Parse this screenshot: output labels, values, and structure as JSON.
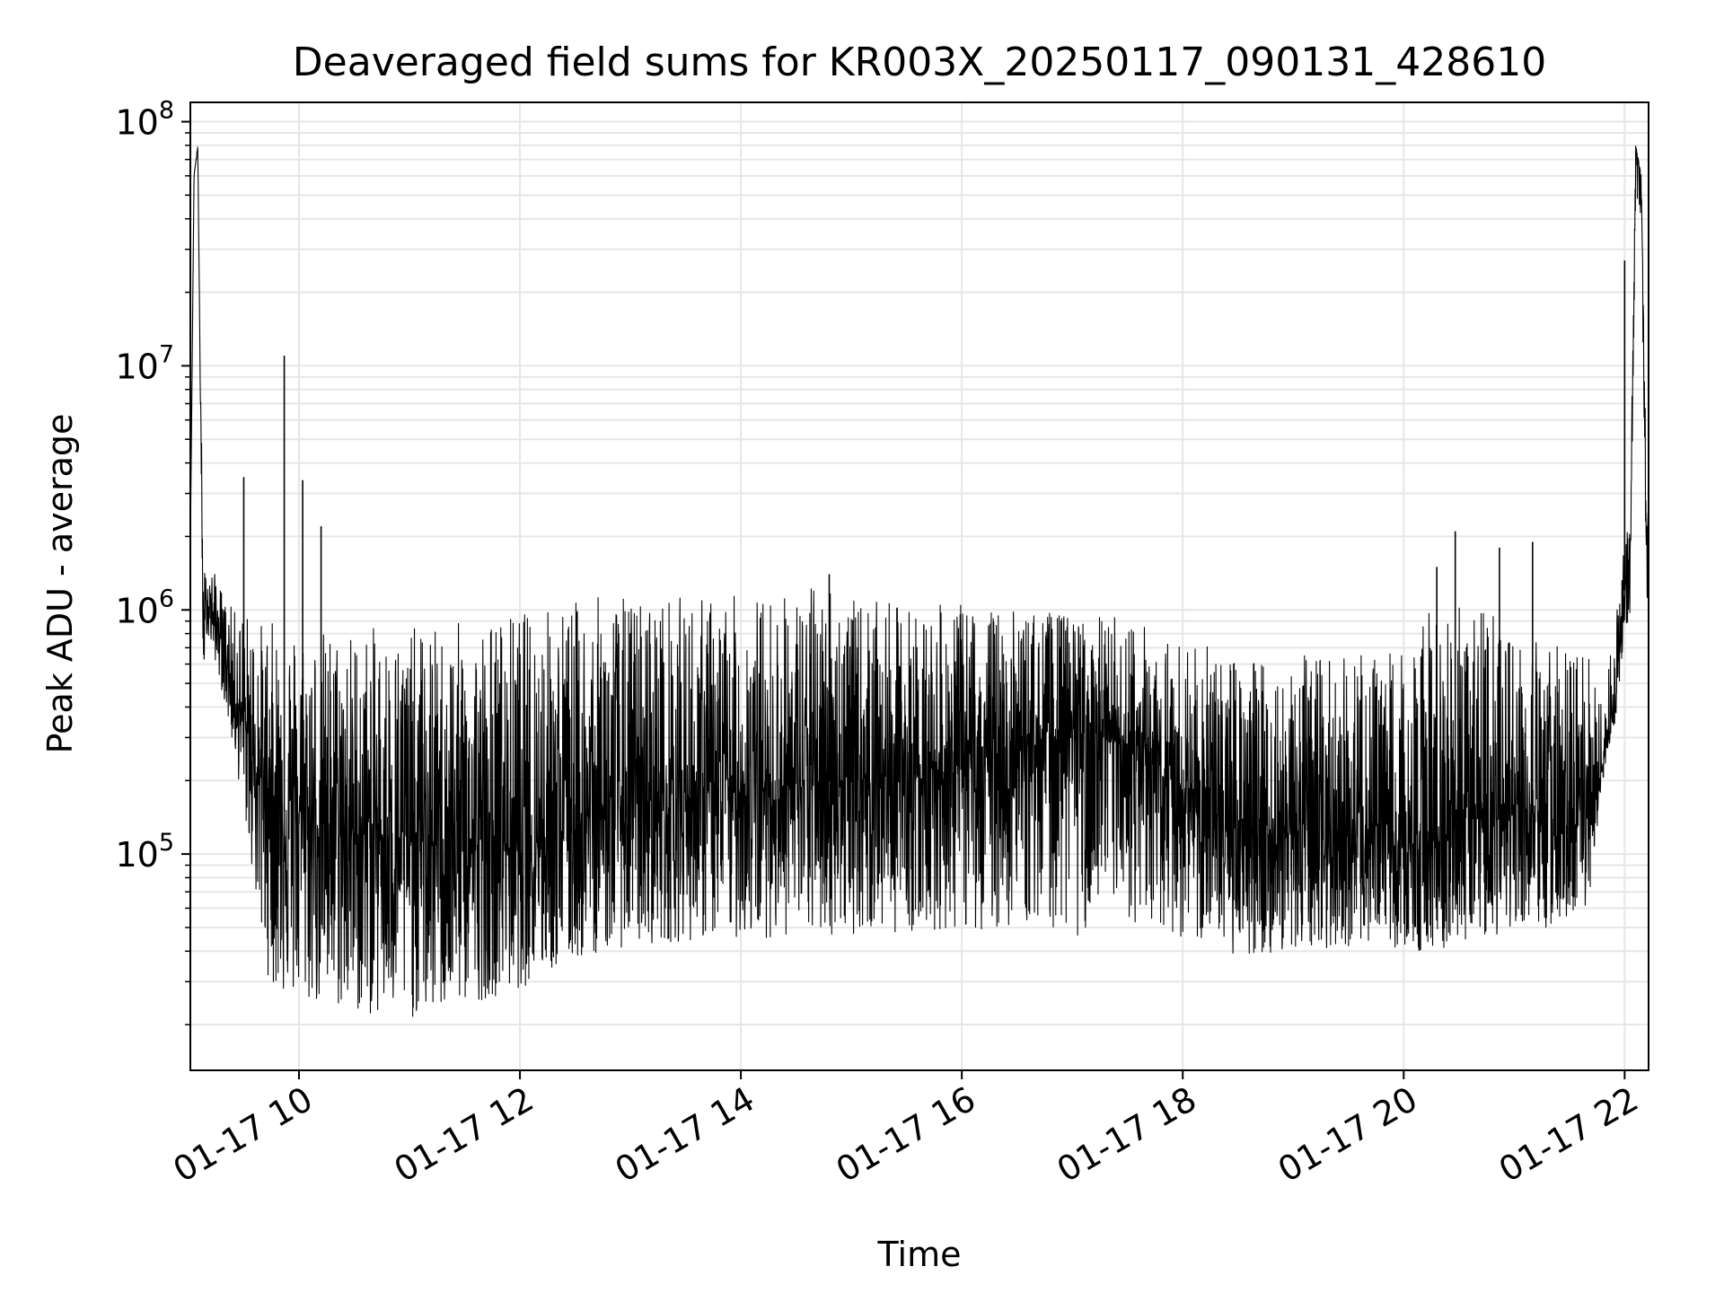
{
  "chart_data": {
    "type": "line",
    "title": "Deaveraged field sums for KR003X_20250117_090131_428610",
    "xlabel": "Time",
    "ylabel": "Peak ADU - average",
    "yscale": "log",
    "grid": true,
    "line_color": "#000000",
    "grid_color": "#e6e6e6",
    "xlim": [
      "2025-01-17 09:01",
      "2025-01-17 22:13"
    ],
    "ylim": [
      13000,
      120000000
    ],
    "x_tick_labels": [
      "01-17 10",
      "01-17 12",
      "01-17 14",
      "01-17 16",
      "01-17 18",
      "01-17 20",
      "01-17 22"
    ],
    "y_tick_labels": [
      {
        "base": "10",
        "exp": "5"
      },
      {
        "base": "10",
        "exp": "6"
      },
      {
        "base": "10",
        "exp": "7"
      },
      {
        "base": "10",
        "exp": "8"
      }
    ],
    "series": [
      {
        "x": [
          "2025-01-17 09:01",
          "2025-01-17 09:03",
          "2025-01-17 09:05",
          "2025-01-17 09:08",
          "2025-01-17 09:10",
          "2025-01-17 09:15",
          "2025-01-17 09:20",
          "2025-01-17 09:25",
          "2025-01-17 09:30",
          "2025-01-17 09:35",
          "2025-01-17 09:40",
          "2025-01-17 09:45",
          "2025-01-17 09:52",
          "2025-01-17 10:00",
          "2025-01-17 10:15",
          "2025-01-17 10:30",
          "2025-01-17 10:45",
          "2025-01-17 11:00",
          "2025-01-17 11:15",
          "2025-01-17 11:30",
          "2025-01-17 11:45",
          "2025-01-17 12:00",
          "2025-01-17 12:15",
          "2025-01-17 12:30",
          "2025-01-17 12:45",
          "2025-01-17 13:00",
          "2025-01-17 13:30",
          "2025-01-17 14:00",
          "2025-01-17 14:30",
          "2025-01-17 14:50",
          "2025-01-17 15:00",
          "2025-01-17 15:30",
          "2025-01-17 16:00",
          "2025-01-17 16:30",
          "2025-01-17 16:45",
          "2025-01-17 17:00",
          "2025-01-17 17:15",
          "2025-01-17 17:30",
          "2025-01-17 17:45",
          "2025-01-17 18:00",
          "2025-01-17 18:15",
          "2025-01-17 18:30",
          "2025-01-17 19:00",
          "2025-01-17 19:30",
          "2025-01-17 20:00",
          "2025-01-17 20:15",
          "2025-01-17 20:30",
          "2025-01-17 20:45",
          "2025-01-17 21:00",
          "2025-01-17 21:15",
          "2025-01-17 21:30",
          "2025-01-17 21:40",
          "2025-01-17 21:50",
          "2025-01-17 21:55",
          "2025-01-17 22:00",
          "2025-01-17 22:03",
          "2025-01-17 22:06",
          "2025-01-17 22:09",
          "2025-01-17 22:12"
        ],
        "y": [
          1800000,
          60000000,
          80000000,
          700000,
          1100000,
          900000,
          650000,
          450000,
          350000,
          250000,
          200000,
          180000,
          150000,
          150000,
          130000,
          120000,
          120000,
          115000,
          110000,
          110000,
          110000,
          115000,
          125000,
          135000,
          145000,
          160000,
          170000,
          180000,
          190000,
          200000,
          200000,
          210000,
          230000,
          260000,
          300000,
          320000,
          300000,
          270000,
          230000,
          180000,
          150000,
          130000,
          120000,
          110000,
          100000,
          110000,
          130000,
          150000,
          160000,
          140000,
          120000,
          110000,
          280000,
          400000,
          1200000,
          1500000,
          80000000,
          60000000,
          2000000
        ],
        "lows": [
          1800000,
          60000000,
          75000000,
          550000,
          800000,
          600000,
          400000,
          250000,
          150000,
          80000,
          40000,
          28000,
          26000,
          24000,
          23000,
          22000,
          21000,
          21000,
          22000,
          24000,
          26000,
          28000,
          32000,
          36000,
          40000,
          42000,
          44000,
          45000,
          46000,
          46000,
          47000,
          48000,
          48000,
          50000,
          52000,
          45000,
          48000,
          52000,
          50000,
          45000,
          40000,
          38000,
          40000,
          42000,
          40000,
          40000,
          42000,
          45000,
          46000,
          45000,
          48000,
          55000,
          250000,
          350000,
          800000,
          900000,
          50000000,
          40000000,
          1000000
        ],
        "highs": [
          1800000,
          60000000,
          80000000,
          1500000,
          1500000,
          1400000,
          1100000,
          1000000,
          1000000,
          950000,
          900000,
          900000,
          900000,
          900000,
          850000,
          850000,
          850000,
          850000,
          850000,
          900000,
          950000,
          1000000,
          1050000,
          1100000,
          1150000,
          1150000,
          1150000,
          1150000,
          1200000,
          1400000,
          1100000,
          1050000,
          1050000,
          1000000,
          1000000,
          950000,
          950000,
          950000,
          850000,
          750000,
          700000,
          650000,
          650000,
          650000,
          700000,
          1000000,
          1100000,
          1000000,
          900000,
          800000,
          700000,
          650000,
          500000,
          900000,
          2000000,
          2500000,
          80000000,
          60000000,
          3000000
        ],
        "spikes": [
          {
            "x": "2025-01-17 09:30",
            "y": 3500000
          },
          {
            "x": "2025-01-17 09:52",
            "y": 11000000
          },
          {
            "x": "2025-01-17 10:02",
            "y": 3400000
          },
          {
            "x": "2025-01-17 10:12",
            "y": 2200000
          },
          {
            "x": "2025-01-17 14:48",
            "y": 1400000
          },
          {
            "x": "2025-01-17 20:18",
            "y": 1500000
          },
          {
            "x": "2025-01-17 20:28",
            "y": 2100000
          },
          {
            "x": "2025-01-17 20:52",
            "y": 1800000
          },
          {
            "x": "2025-01-17 21:10",
            "y": 1900000
          },
          {
            "x": "2025-01-17 22:00",
            "y": 27000000
          }
        ]
      }
    ]
  }
}
